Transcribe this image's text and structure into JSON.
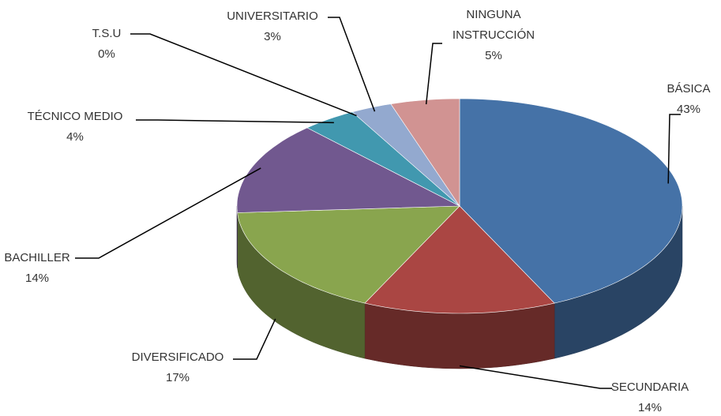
{
  "chart_data": {
    "type": "pie3d",
    "categories": [
      "BÁSICA",
      "SECUNDARIA",
      "DIVERSIFICADO",
      "BACHILLER",
      "TÉCNICO MEDIO",
      "T.S.U",
      "UNIVERSITARIO",
      "NINGUNA INSTRUCCIÓN"
    ],
    "values": [
      43,
      14,
      17,
      14,
      4,
      0,
      3,
      5
    ],
    "value_labels": [
      "43%",
      "14%",
      "17%",
      "14%",
      "4%",
      "0%",
      "3%",
      "5%"
    ],
    "colors": [
      "#4572a7",
      "#aa4643",
      "#89a54e",
      "#71588f",
      "#4198af",
      "#db843d",
      "#93a9cf",
      "#d19392"
    ]
  }
}
